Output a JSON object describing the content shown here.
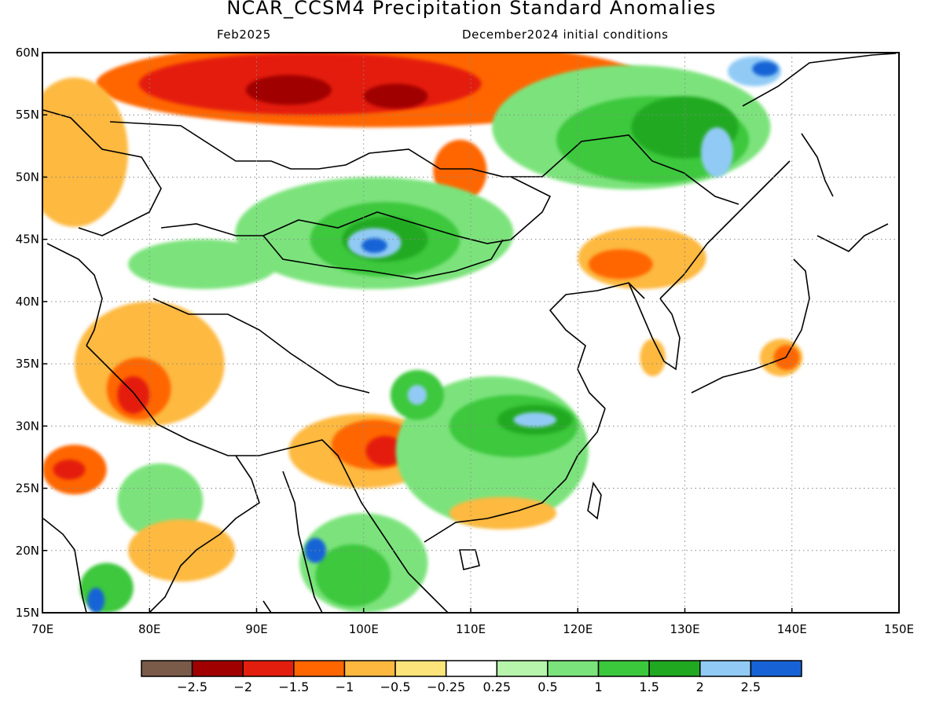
{
  "header": {
    "title": "NCAR_CCSM4 Precipitation Standard Anomalies",
    "valid_month": "Feb2025",
    "init_label": "December2024 initial conditions"
  },
  "map": {
    "lon_range": [
      70,
      150
    ],
    "lat_range": [
      15,
      60
    ],
    "lon_ticks": [
      {
        "value": 70,
        "label": "70E"
      },
      {
        "value": 80,
        "label": "80E"
      },
      {
        "value": 90,
        "label": "90E"
      },
      {
        "value": 100,
        "label": "100E"
      },
      {
        "value": 110,
        "label": "110E"
      },
      {
        "value": 120,
        "label": "120E"
      },
      {
        "value": 130,
        "label": "130E"
      },
      {
        "value": 140,
        "label": "140E"
      },
      {
        "value": 150,
        "label": "150E"
      }
    ],
    "lat_ticks": [
      {
        "value": 15,
        "label": "15N"
      },
      {
        "value": 20,
        "label": "20N"
      },
      {
        "value": 25,
        "label": "25N"
      },
      {
        "value": 30,
        "label": "30N"
      },
      {
        "value": 35,
        "label": "35N"
      },
      {
        "value": 40,
        "label": "40N"
      },
      {
        "value": 45,
        "label": "45N"
      },
      {
        "value": 50,
        "label": "50N"
      },
      {
        "value": 55,
        "label": "55N"
      },
      {
        "value": 60,
        "label": "60N"
      }
    ],
    "gridlines": "dotted",
    "anomaly_regions": [
      {
        "name": "north-band-dry",
        "color": "#ff6600",
        "lon": 101,
        "lat": 57.5,
        "rx": 26,
        "ry": 3.5
      },
      {
        "name": "west-dry",
        "color": "#fdb93f",
        "lon": 73,
        "lat": 52,
        "rx": 5,
        "ry": 6
      },
      {
        "name": "mongolia-core-dry",
        "color": "#e41e0e",
        "lon": 95,
        "lat": 57.5,
        "rx": 16,
        "ry": 2.5
      },
      {
        "name": "north-dry-1",
        "color": "#a00000",
        "lon": 93,
        "lat": 57,
        "rx": 4,
        "ry": 1.2
      },
      {
        "name": "north-dry-2",
        "color": "#a00000",
        "lon": 103,
        "lat": 56.5,
        "rx": 3,
        "ry": 1
      },
      {
        "name": "baikal-dry",
        "color": "#ff6600",
        "lon": 109,
        "lat": 50.5,
        "rx": 2.5,
        "ry": 2.5
      },
      {
        "name": "mongolia-wet",
        "color": "#7be37b",
        "lon": 101,
        "lat": 45.5,
        "rx": 13,
        "ry": 4.5
      },
      {
        "name": "mongolia-wet-inner",
        "color": "#3cc83c",
        "lon": 102,
        "lat": 45,
        "rx": 7,
        "ry": 3
      },
      {
        "name": "mongolia-wet-core",
        "color": "#20a920",
        "lon": 102,
        "lat": 45,
        "rx": 4,
        "ry": 1.8
      },
      {
        "name": "mongolia-wet-peak",
        "color": "#91cbf5",
        "lon": 101,
        "lat": 44.7,
        "rx": 2.5,
        "ry": 1.2
      },
      {
        "name": "mongolia-wet-max",
        "color": "#1763d6",
        "lon": 101,
        "lat": 44.5,
        "rx": 1.2,
        "ry": 0.6
      },
      {
        "name": "west-wet",
        "color": "#7be37b",
        "lon": 85,
        "lat": 43,
        "rx": 7,
        "ry": 2
      },
      {
        "name": "manchuria-wet",
        "color": "#7be37b",
        "lon": 125,
        "lat": 54,
        "rx": 13,
        "ry": 5
      },
      {
        "name": "manchuria-wet-inner",
        "color": "#3cc83c",
        "lon": 127,
        "lat": 53,
        "rx": 9,
        "ry": 3.5
      },
      {
        "name": "manchuria-wet-core",
        "color": "#20a920",
        "lon": 130,
        "lat": 54,
        "rx": 5,
        "ry": 2.5
      },
      {
        "name": "manchuria-wet-peak",
        "color": "#91cbf5",
        "lon": 133,
        "lat": 52,
        "rx": 1.5,
        "ry": 2
      },
      {
        "name": "okhotsk-wet",
        "color": "#91cbf5",
        "lon": 136.5,
        "lat": 58.5,
        "rx": 2.5,
        "ry": 1.2
      },
      {
        "name": "okhotsk-wet-core",
        "color": "#1763d6",
        "lon": 137.5,
        "lat": 58.7,
        "rx": 1.2,
        "ry": 0.6
      },
      {
        "name": "northeast-china-dry",
        "color": "#fdb93f",
        "lon": 126,
        "lat": 43.5,
        "rx": 6,
        "ry": 2.5
      },
      {
        "name": "northeast-china-dry-core",
        "color": "#ff6600",
        "lon": 124,
        "lat": 43,
        "rx": 3,
        "ry": 1.2
      },
      {
        "name": "tarim-dry",
        "color": "#fdb93f",
        "lon": 80,
        "lat": 35,
        "rx": 7,
        "ry": 5
      },
      {
        "name": "kashmir-dry",
        "color": "#ff6600",
        "lon": 79,
        "lat": 33,
        "rx": 3,
        "ry": 2.5
      },
      {
        "name": "kashmir-dry-core",
        "color": "#e41e0e",
        "lon": 78.5,
        "lat": 32.5,
        "rx": 1.5,
        "ry": 1.5
      },
      {
        "name": "arabian-dry",
        "color": "#ff6600",
        "lon": 73,
        "lat": 26.5,
        "rx": 3,
        "ry": 2
      },
      {
        "name": "arabian-dry-core",
        "color": "#e41e0e",
        "lon": 72.5,
        "lat": 26.5,
        "rx": 1.5,
        "ry": 0.8
      },
      {
        "name": "tibet-dry",
        "color": "#fdb93f",
        "lon": 100,
        "lat": 28,
        "rx": 7,
        "ry": 3
      },
      {
        "name": "tibet-dry-inner",
        "color": "#ff6600",
        "lon": 101,
        "lat": 28.5,
        "rx": 4,
        "ry": 2
      },
      {
        "name": "tibet-dry-core",
        "color": "#e41e0e",
        "lon": 102,
        "lat": 28,
        "rx": 1.8,
        "ry": 1.2
      },
      {
        "name": "south-china-wet",
        "color": "#7be37b",
        "lon": 112,
        "lat": 28,
        "rx": 9,
        "ry": 6
      },
      {
        "name": "yangtze-wet",
        "color": "#3cc83c",
        "lon": 114,
        "lat": 30,
        "rx": 6,
        "ry": 2.5
      },
      {
        "name": "yangtze-wet-core",
        "color": "#20a920",
        "lon": 116,
        "lat": 30.5,
        "rx": 3.5,
        "ry": 1.2
      },
      {
        "name": "yangtze-wet-peak",
        "color": "#91cbf5",
        "lon": 116,
        "lat": 30.5,
        "rx": 2,
        "ry": 0.6
      },
      {
        "name": "sichuan-wet",
        "color": "#3cc83c",
        "lon": 105,
        "lat": 32.5,
        "rx": 2.5,
        "ry": 2
      },
      {
        "name": "sichuan-wet-peak",
        "color": "#91cbf5",
        "lon": 105,
        "lat": 32.5,
        "rx": 0.9,
        "ry": 0.8
      },
      {
        "name": "south-china-coast-dry",
        "color": "#fdb93f",
        "lon": 113,
        "lat": 23,
        "rx": 5,
        "ry": 1.3
      },
      {
        "name": "india-wet",
        "color": "#7be37b",
        "lon": 81,
        "lat": 24,
        "rx": 4,
        "ry": 3
      },
      {
        "name": "india-south-wet",
        "color": "#3cc83c",
        "lon": 76,
        "lat": 17,
        "rx": 2.5,
        "ry": 2
      },
      {
        "name": "india-south-wet-peak",
        "color": "#1763d6",
        "lon": 75,
        "lat": 16,
        "rx": 0.8,
        "ry": 1
      },
      {
        "name": "bay-of-bengal-dry",
        "color": "#fdb93f",
        "lon": 83,
        "lat": 20,
        "rx": 5,
        "ry": 2.5
      },
      {
        "name": "indochina-wet",
        "color": "#7be37b",
        "lon": 100,
        "lat": 19,
        "rx": 6,
        "ry": 4
      },
      {
        "name": "indochina-wet-inner",
        "color": "#3cc83c",
        "lon": 99,
        "lat": 18,
        "rx": 3.5,
        "ry": 2.5
      },
      {
        "name": "myanmar-wet-core",
        "color": "#1763d6",
        "lon": 95.5,
        "lat": 20,
        "rx": 1,
        "ry": 1
      },
      {
        "name": "korea-dry",
        "color": "#fdb93f",
        "lon": 127,
        "lat": 35.5,
        "rx": 1.2,
        "ry": 1.5
      },
      {
        "name": "japan-dry",
        "color": "#fdb93f",
        "lon": 139,
        "lat": 35.5,
        "rx": 2,
        "ry": 1.5
      },
      {
        "name": "japan-dry-core",
        "color": "#ff6600",
        "lon": 139.5,
        "lat": 35.5,
        "rx": 1.2,
        "ry": 1
      }
    ]
  },
  "colorbar": {
    "colors": [
      "#7a5a48",
      "#a00000",
      "#e41e0e",
      "#ff6600",
      "#fdb93f",
      "#fde47a",
      "#ffffff",
      "#b6f5ab",
      "#7be37b",
      "#3cc83c",
      "#20a920",
      "#91cbf5",
      "#1763d6"
    ],
    "labels": [
      "−2.5",
      "−2",
      "−1.5",
      "−1",
      "−0.5",
      "−0.25",
      "0.25",
      "0.5",
      "1",
      "1.5",
      "2",
      "2.5"
    ]
  }
}
